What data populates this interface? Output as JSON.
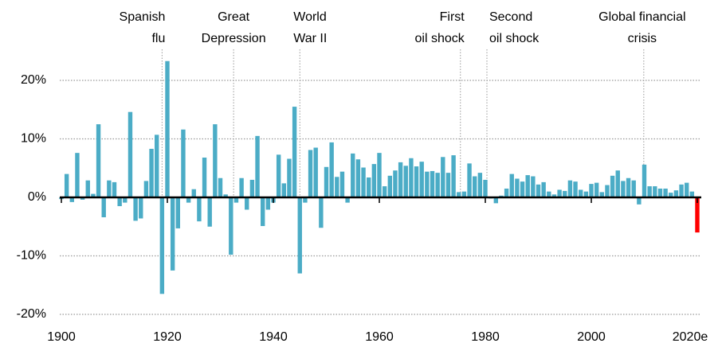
{
  "chart_data": {
    "type": "bar",
    "x": [
      1900,
      1901,
      1902,
      1903,
      1904,
      1905,
      1906,
      1907,
      1908,
      1909,
      1910,
      1911,
      1912,
      1913,
      1914,
      1915,
      1916,
      1917,
      1918,
      1919,
      1920,
      1921,
      1922,
      1923,
      1924,
      1925,
      1926,
      1927,
      1928,
      1929,
      1930,
      1931,
      1932,
      1933,
      1934,
      1935,
      1936,
      1937,
      1938,
      1939,
      1940,
      1941,
      1942,
      1943,
      1944,
      1945,
      1946,
      1947,
      1948,
      1949,
      1950,
      1951,
      1952,
      1953,
      1954,
      1955,
      1956,
      1957,
      1958,
      1959,
      1960,
      1961,
      1962,
      1963,
      1964,
      1965,
      1966,
      1967,
      1968,
      1969,
      1970,
      1971,
      1972,
      1973,
      1974,
      1975,
      1976,
      1977,
      1978,
      1979,
      1980,
      1981,
      1982,
      1983,
      1984,
      1985,
      1986,
      1987,
      1988,
      1989,
      1990,
      1991,
      1992,
      1993,
      1994,
      1995,
      1996,
      1997,
      1998,
      1999,
      2000,
      2001,
      2002,
      2003,
      2004,
      2005,
      2006,
      2007,
      2008,
      2009,
      2010,
      2011,
      2012,
      2013,
      2014,
      2015,
      2016,
      2017,
      2018,
      2019,
      2020
    ],
    "values": [
      -0.3,
      4.0,
      -0.8,
      7.6,
      -0.4,
      2.9,
      0.6,
      12.5,
      -3.4,
      2.9,
      2.6,
      -1.5,
      -0.9,
      14.6,
      -4.0,
      -3.6,
      2.8,
      8.3,
      10.7,
      -16.5,
      23.3,
      -12.5,
      -5.3,
      11.6,
      -0.9,
      1.4,
      -4.1,
      6.8,
      -5.0,
      12.5,
      3.3,
      0.5,
      -9.8,
      -0.9,
      3.3,
      -2.1,
      3.0,
      10.5,
      -4.9,
      -2.1,
      -0.9,
      7.3,
      2.4,
      6.6,
      15.5,
      -13.0,
      -0.9,
      8.1,
      8.5,
      -5.2,
      5.2,
      9.4,
      3.5,
      4.4,
      -0.9,
      7.5,
      6.5,
      5.1,
      3.4,
      5.7,
      7.6,
      1.9,
      3.7,
      4.6,
      6.0,
      5.4,
      6.7,
      5.3,
      6.1,
      4.4,
      4.5,
      4.2,
      6.9,
      4.2,
      7.2,
      0.9,
      1.0,
      5.8,
      3.6,
      4.2,
      3.0,
      -0.2,
      -1.0,
      0.3,
      1.5,
      4.0,
      3.2,
      2.7,
      3.8,
      3.6,
      2.2,
      2.6,
      1.0,
      0.5,
      1.3,
      1.1,
      2.9,
      2.7,
      1.3,
      1.0,
      2.3,
      2.5,
      0.9,
      2.1,
      3.7,
      4.6,
      2.8,
      3.3,
      2.9,
      -1.2,
      5.6,
      1.9,
      1.9,
      1.5,
      1.5,
      0.8,
      1.2,
      2.2,
      2.5,
      1.0,
      -6.0
    ],
    "color": "#4bacc6",
    "highlight": {
      "x": 2020,
      "color": "#ff0000"
    },
    "xlim": [
      1900,
      2020
    ],
    "xticks": [
      1900,
      1920,
      1940,
      1960,
      1980,
      2000,
      {
        "value": 2020,
        "label": "2020e"
      }
    ],
    "ylim": [
      -20,
      23.3
    ],
    "yticks": [
      {
        "value": -20,
        "label": "-20%"
      },
      {
        "value": -10,
        "label": "-10%"
      },
      {
        "value": 0,
        "label": "0%"
      },
      {
        "value": 10,
        "label": "10%"
      },
      {
        "value": 20,
        "label": "20%"
      }
    ],
    "grid": true,
    "annotations": [
      {
        "lines": [
          "Spanish",
          "flu"
        ],
        "x": 1919
      },
      {
        "lines": [
          "Great",
          "Depression"
        ],
        "x": 1932.5
      },
      {
        "lines": [
          "World",
          "War II"
        ],
        "x": 1945
      },
      {
        "lines": [
          "First",
          "oil shock"
        ],
        "x": 1975.3
      },
      {
        "lines": [
          "Second",
          "oil shock"
        ],
        "x": 1980.3
      },
      {
        "lines": [
          "Global financial",
          "crisis"
        ],
        "x": 2009.9
      }
    ]
  }
}
